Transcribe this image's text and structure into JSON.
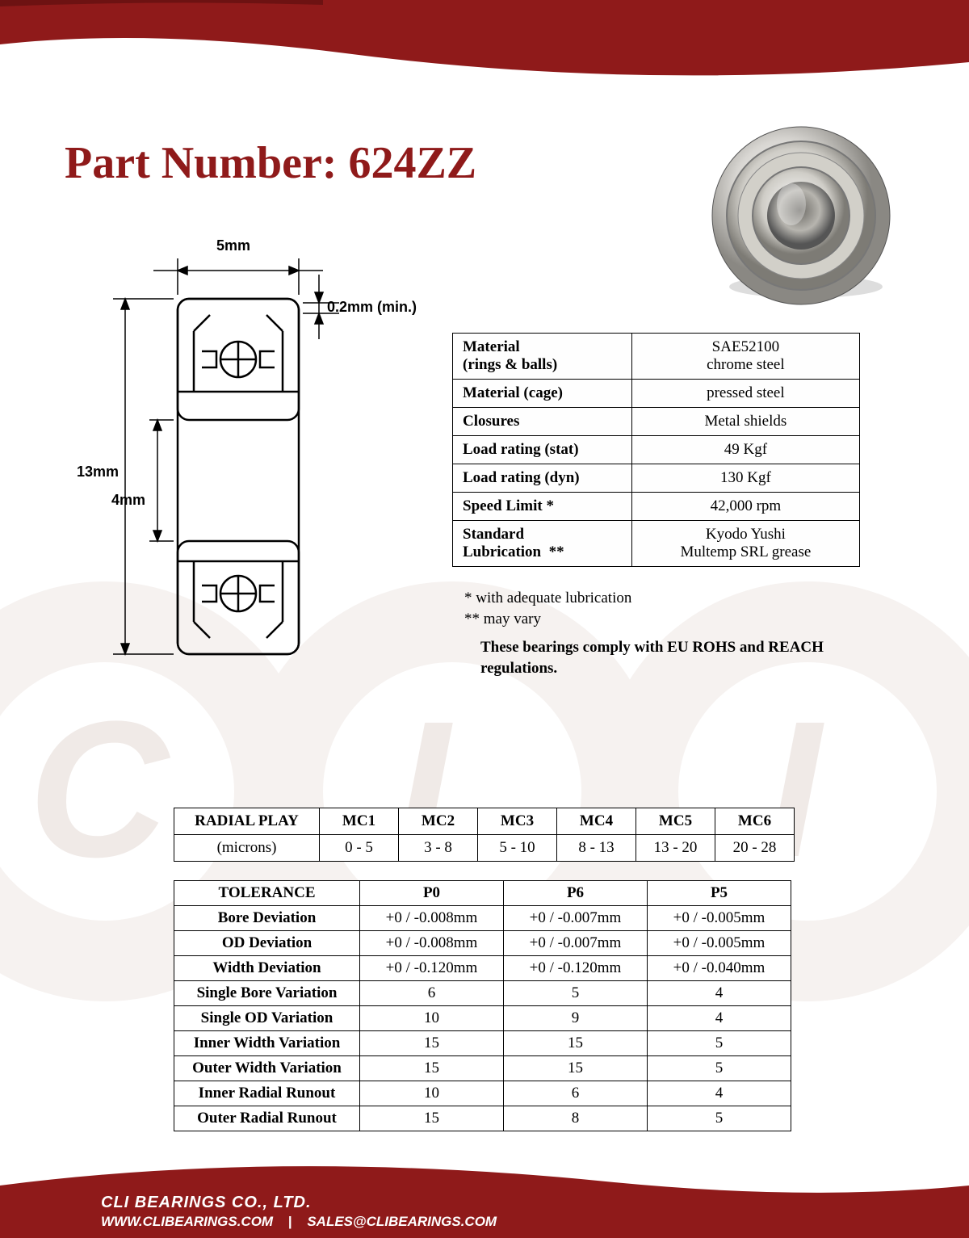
{
  "brand": {
    "logo": "CLI",
    "reg": "®",
    "suffix": "BEARINGS"
  },
  "colors": {
    "brand_red": "#8f1a1a",
    "header_dark": "#7a1515",
    "watermark": "#f4f0ee",
    "white": "#ffffff",
    "black": "#000000",
    "border": "#000000"
  },
  "title": "Part Number: 624ZZ",
  "diagram_dims": {
    "width": "5mm",
    "clearance": "0.2mm (min.)",
    "outer_dia": "13mm",
    "bore": "4mm"
  },
  "spec_rows": [
    {
      "label_html": "Material<br>(rings & balls)",
      "value_html": "SAE52100<br>chrome steel"
    },
    {
      "label_html": "Material (cage)",
      "value_html": "pressed steel"
    },
    {
      "label_html": "Closures",
      "value_html": "Metal shields"
    },
    {
      "label_html": "Load rating (stat)",
      "value_html": "49 Kgf"
    },
    {
      "label_html": "Load rating (dyn)",
      "value_html": "130 Kgf"
    },
    {
      "label_html": "Speed Limit *",
      "value_html": "42,000 rpm"
    },
    {
      "label_html": "Standard<br>Lubrication&nbsp;&nbsp;**",
      "value_html": "Kyodo Yushi<br>Multemp SRL grease"
    }
  ],
  "notes": {
    "n1": " * with adequate lubrication",
    "n2": "** may vary",
    "compliance": "These bearings comply with EU ROHS and REACH  regulations."
  },
  "radial": {
    "header": [
      "RADIAL PLAY",
      "MC1",
      "MC2",
      "MC3",
      "MC4",
      "MC5",
      "MC6"
    ],
    "row_label": "(microns)",
    "row": [
      "0 - 5",
      "3 - 8",
      "5 - 10",
      "8 - 13",
      "13 - 20",
      "20 - 28"
    ]
  },
  "tolerance": {
    "header": [
      "TOLERANCE",
      "P0",
      "P6",
      "P5"
    ],
    "rows": [
      [
        "Bore Deviation",
        "+0 / -0.008mm",
        "+0 / -0.007mm",
        "+0 / -0.005mm"
      ],
      [
        "OD Deviation",
        "+0 / -0.008mm",
        "+0 / -0.007mm",
        "+0 / -0.005mm"
      ],
      [
        "Width Deviation",
        "+0 / -0.120mm",
        "+0 / -0.120mm",
        "+0 / -0.040mm"
      ],
      [
        "Single Bore Variation",
        "6",
        "5",
        "4"
      ],
      [
        "Single OD Variation",
        "10",
        "9",
        "4"
      ],
      [
        "Inner Width Variation",
        "15",
        "15",
        "5"
      ],
      [
        "Outer Width Variation",
        "15",
        "15",
        "5"
      ],
      [
        "Inner Radial Runout",
        "10",
        "6",
        "4"
      ],
      [
        "Outer Radial Runout",
        "15",
        "8",
        "5"
      ]
    ]
  },
  "footer": {
    "company": "CLI BEARINGS CO., LTD.",
    "web": "WWW.CLIBEARINGS.COM",
    "sep": "|",
    "email": "SALES@CLIBEARINGS.COM"
  }
}
